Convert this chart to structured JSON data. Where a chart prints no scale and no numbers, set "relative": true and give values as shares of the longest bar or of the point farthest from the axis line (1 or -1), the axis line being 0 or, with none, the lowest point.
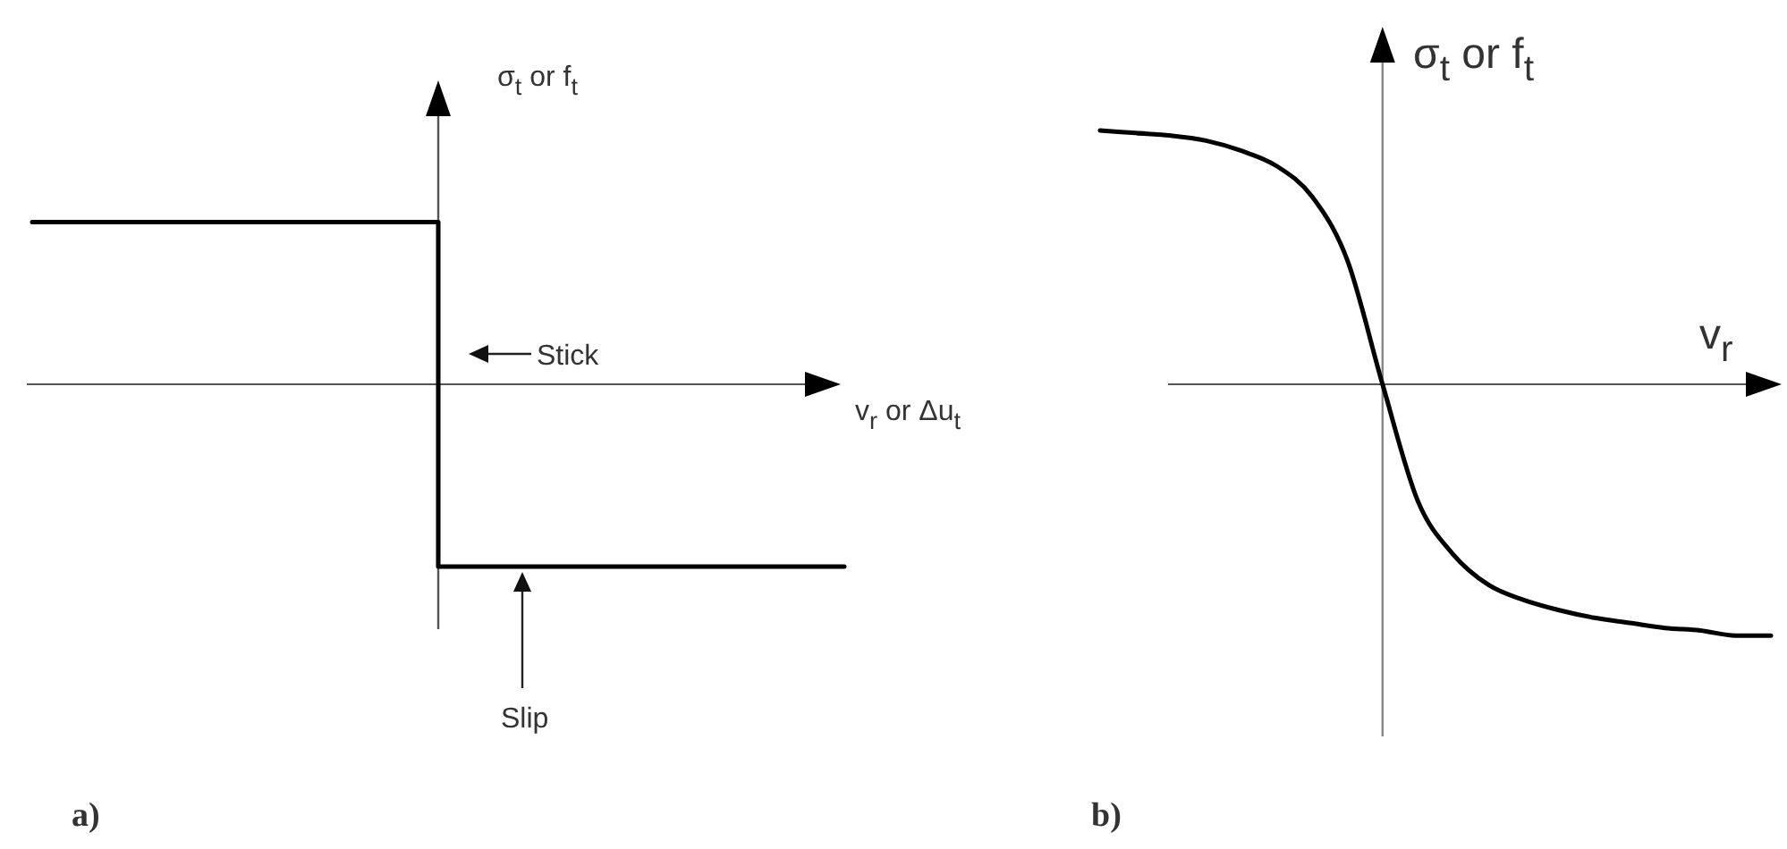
{
  "chart_data": [
    {
      "type": "step",
      "title": "a)",
      "xlabel": "v$_{r}$ or Δu$_{t}$",
      "ylabel": "σ$_{t}$ or f$_{t}$",
      "relative": true,
      "categories": [
        null,
        null,
        null
      ],
      "series": [
        {
          "color": "#000000",
          "values": [
            0.89,
            -1,
            -1
          ]
        }
      ],
      "annotations": [
        "Stick",
        "Slip"
      ]
    },
    {
      "type": "line",
      "title": "b)",
      "xlabel": "v$_{r}$",
      "ylabel": "σ$_{t}$ or f$_{t}$",
      "relative": true,
      "categories": [
        null,
        null,
        null,
        null,
        null,
        null,
        null,
        null,
        null,
        null,
        null,
        null,
        null,
        null,
        null,
        null,
        null,
        null,
        null,
        null
      ],
      "series": [
        {
          "color": "#000000",
          "values": [
            1,
            0.99,
            0.98,
            0.96,
            0.92,
            0.86,
            0.74,
            0.49,
            0,
            -0.46,
            -0.67,
            -0.79,
            -0.85,
            -0.89,
            -0.92,
            -0.94,
            -0.96,
            -0.97,
            -0.99,
            -0.99
          ]
        }
      ]
    }
  ]
}
